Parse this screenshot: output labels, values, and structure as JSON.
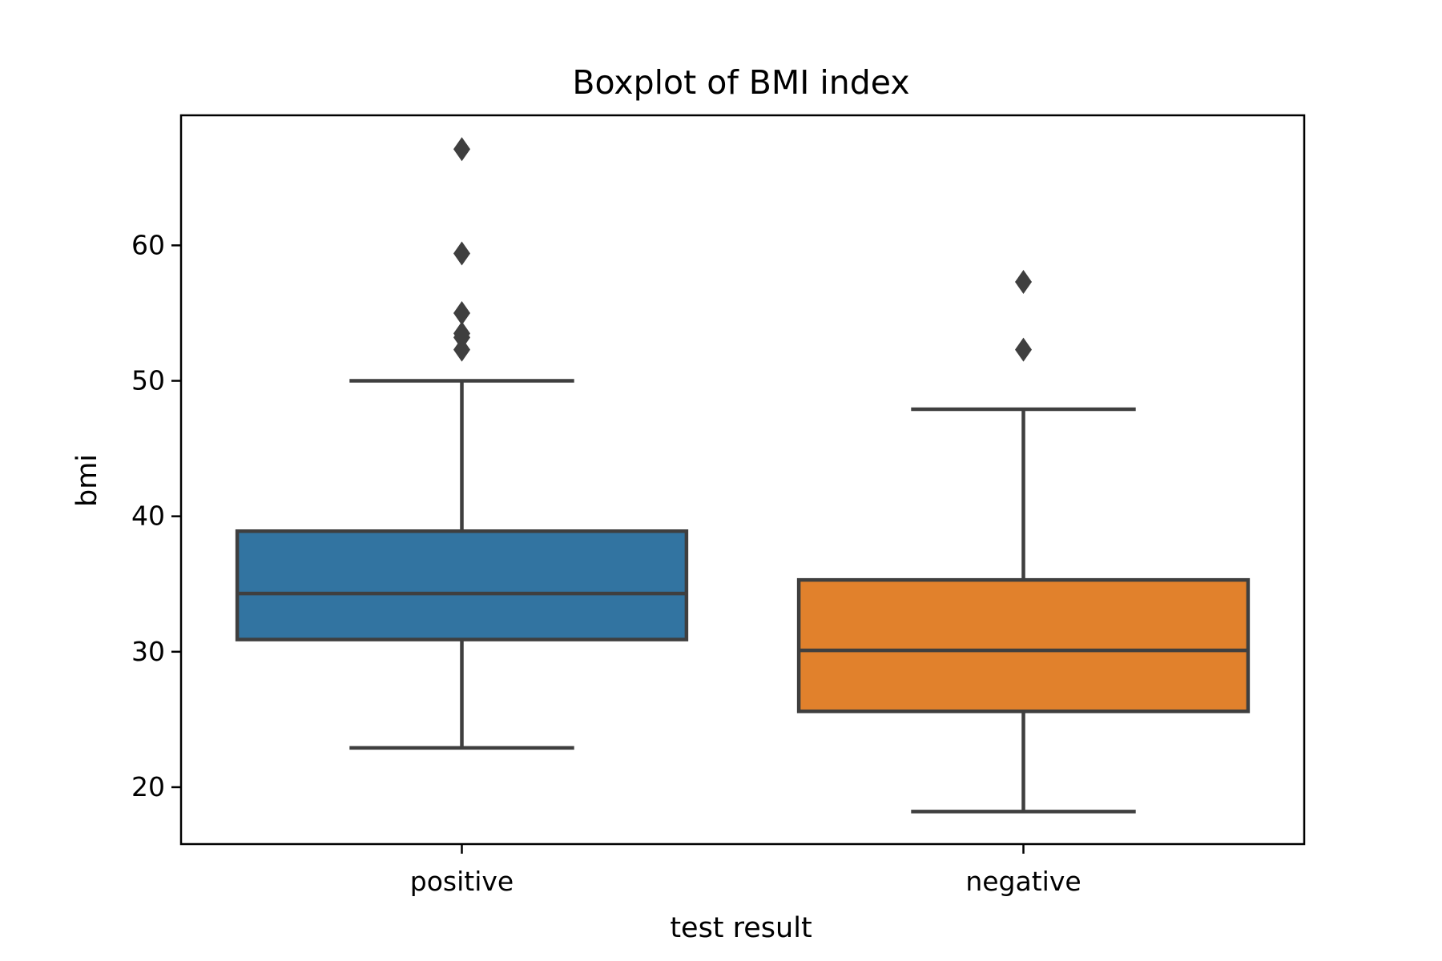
{
  "chart_data": {
    "type": "box",
    "title": "Boxplot of BMI index",
    "xlabel": "test result",
    "ylabel": "bmi",
    "ylim": [
      15.8,
      69.6
    ],
    "yticks": [
      20,
      30,
      40,
      50,
      60
    ],
    "ytick_labels": [
      "20",
      "30",
      "40",
      "50",
      "60"
    ],
    "categories": [
      "positive",
      "negative"
    ],
    "grid": false,
    "legend": "none",
    "boxes": [
      {
        "category": "positive",
        "color": "#3274a1",
        "whisker_low": 22.9,
        "q1": 30.9,
        "median": 34.3,
        "q3": 38.9,
        "whisker_high": 50.0,
        "outliers": [
          52.3,
          53.2,
          53.5,
          55.0,
          59.4,
          67.1
        ]
      },
      {
        "category": "negative",
        "color": "#e1812c",
        "whisker_low": 18.2,
        "q1": 25.6,
        "median": 30.1,
        "q3": 35.3,
        "whisker_high": 47.9,
        "outliers": [
          52.3,
          57.3
        ]
      }
    ],
    "line_color": "#3f3f3f"
  }
}
